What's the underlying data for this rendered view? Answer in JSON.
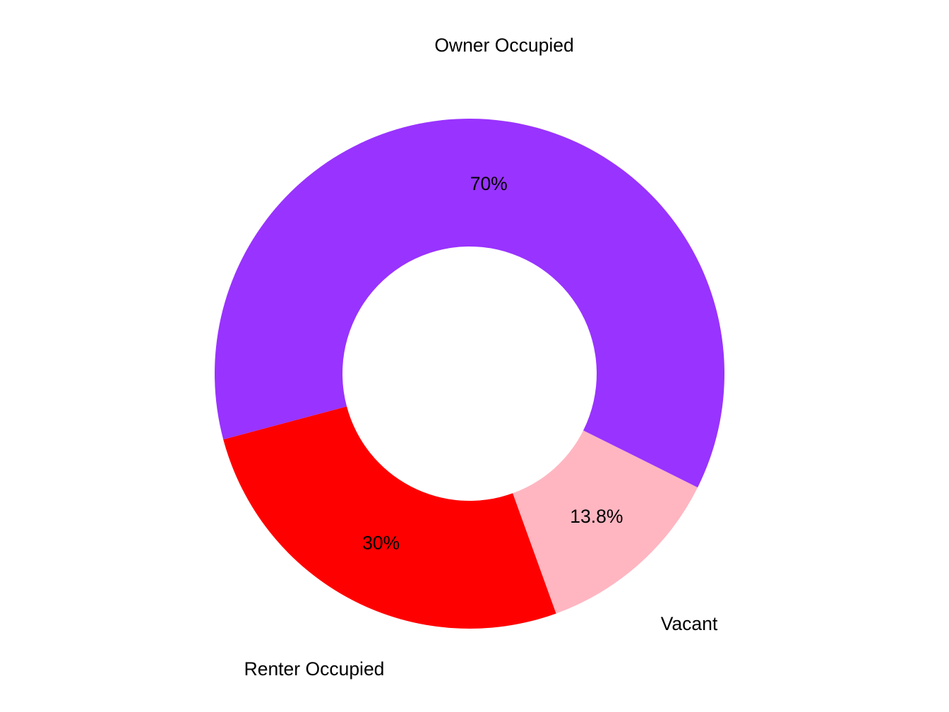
{
  "chart_data": {
    "type": "pie",
    "subtype": "donut",
    "title": "",
    "categories": [
      "Owner Occupied",
      "Renter Occupied",
      "Vacant"
    ],
    "values": [
      70,
      30,
      13.8
    ],
    "value_labels": [
      "70%",
      "30%",
      "13.8%"
    ],
    "colors": [
      "#9933FF",
      "#FF0000",
      "#FFB6C1"
    ],
    "legend": "none",
    "labels_position": "outside",
    "center": [
      665,
      529
    ],
    "outer_radius": 361,
    "inner_radius": 180,
    "start_angle_deg": 116.5,
    "direction": "clockwise_from_top"
  }
}
